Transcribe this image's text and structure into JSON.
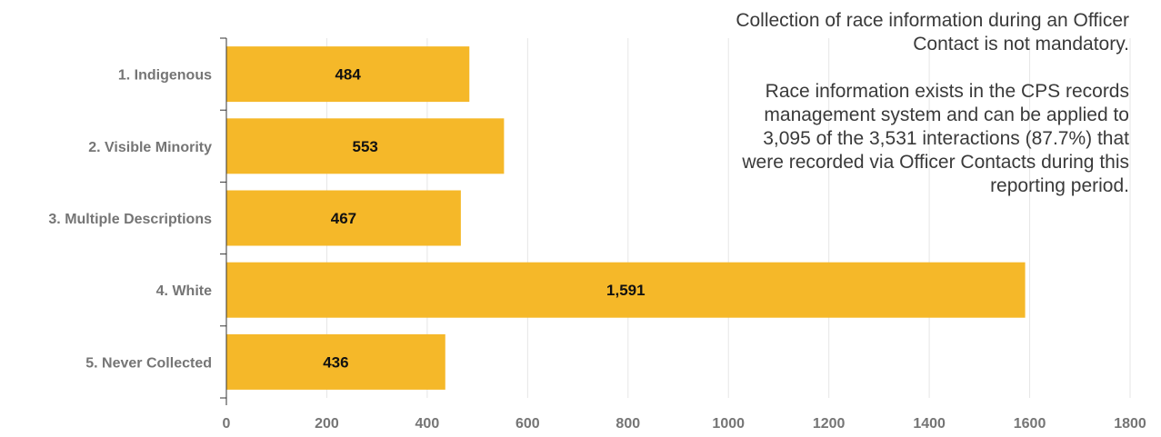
{
  "chart_data": {
    "type": "bar",
    "orientation": "horizontal",
    "categories": [
      "1. Indigenous",
      "2. Visible Minority",
      "3. Multiple Descriptions",
      "4. White",
      "5. Never Collected"
    ],
    "values": [
      484,
      553,
      467,
      1591,
      436
    ],
    "value_labels": [
      "484",
      "553",
      "467",
      "1,591",
      "436"
    ],
    "xlim": [
      0,
      1800
    ],
    "xticks": [
      0,
      200,
      400,
      600,
      800,
      1000,
      1200,
      1400,
      1600,
      1800
    ],
    "grid": true,
    "bar_color": "#F5B829",
    "title": "",
    "xlabel": "",
    "ylabel": ""
  },
  "annotations": [
    "Collection of race information during an Officer\nContact is not mandatory.",
    "Race information exists in the CPS records\nmanagement system and can be applied to\n3,095 of the 3,531 interactions  (87.7%) that\nwere recorded via Officer Contacts during this\nreporting period."
  ]
}
